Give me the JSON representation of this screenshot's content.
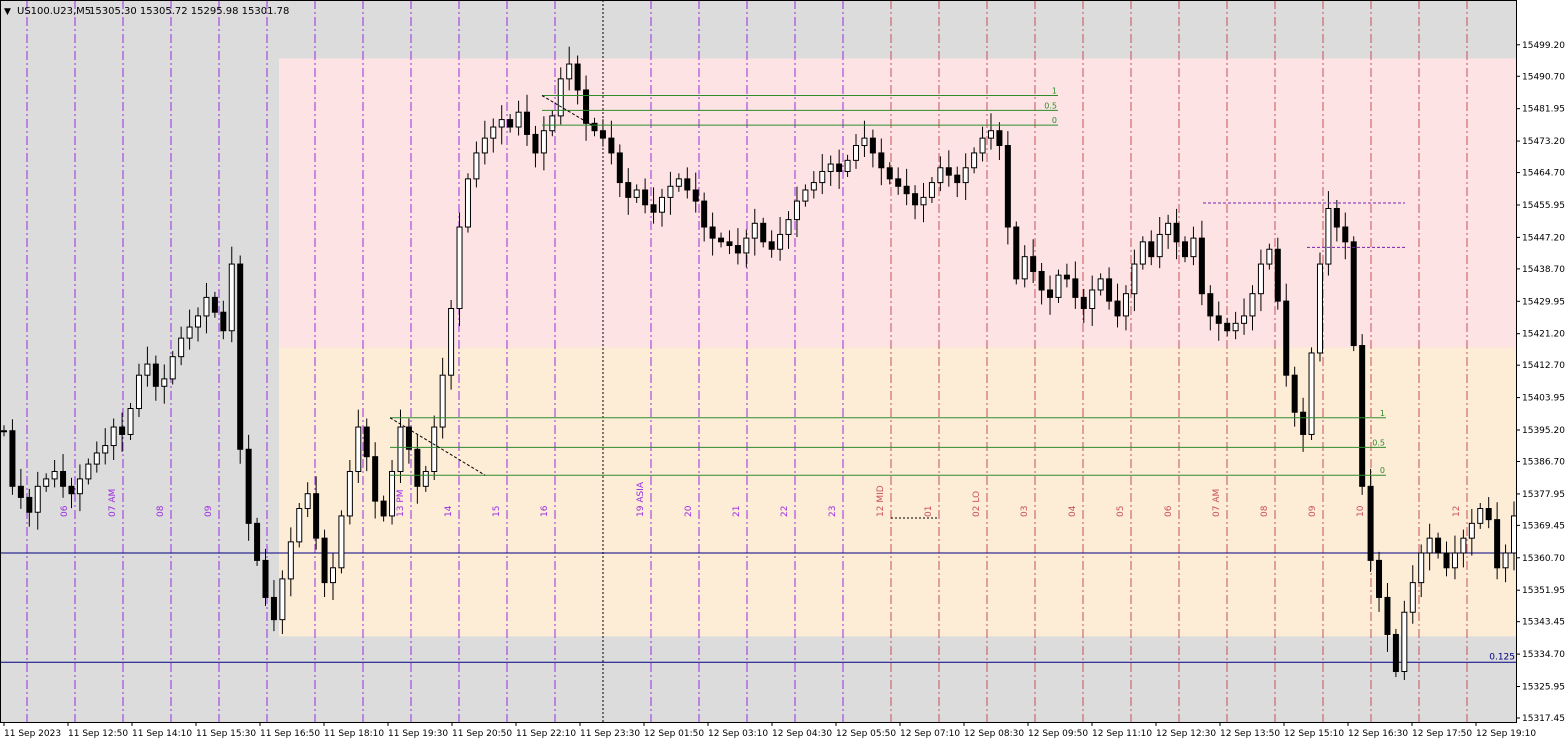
{
  "header": {
    "arrow": "▼",
    "symbol": "US100.U23,M5",
    "ohlc": "15305.30 15305.72 15295.98 15301.78"
  },
  "colors": {
    "premium_zone": "#fde3e3",
    "discount_zone": "#fdedd7",
    "outside_zone": "#dcdcdc",
    "candle": "#000000",
    "fib_line": "#2e8b2e",
    "fib_label": "#2e8b2e",
    "level_line": "#000080",
    "session_line_day1": "#9a2be0",
    "session_line_day2": "#c8505a",
    "liquidity_line": "#7a1fb0"
  },
  "chart_data": {
    "type": "candlestick",
    "title": "",
    "xlabel": "",
    "ylabel": "",
    "ylim": [
      15317.45,
      15504.0
    ],
    "y_ticks": [
      "15499.20",
      "15490.70",
      "15481.95",
      "15473.20",
      "15464.70",
      "15455.95",
      "15447.20",
      "15438.70",
      "15429.95",
      "15421.20",
      "15412.70",
      "15403.95",
      "15395.20",
      "15386.70",
      "15377.95",
      "15369.45",
      "15360.70",
      "15351.95",
      "15343.45",
      "15334.70",
      "15325.95",
      "15317.45"
    ],
    "x_ticks": [
      "11 Sep 2023",
      "11 Sep 12:50",
      "11 Sep 14:10",
      "11 Sep 15:30",
      "11 Sep 16:50",
      "11 Sep 18:10",
      "11 Sep 19:30",
      "11 Sep 20:50",
      "11 Sep 22:10",
      "11 Sep 23:30",
      "12 Sep 01:50",
      "12 Sep 03:10",
      "12 Sep 04:30",
      "12 Sep 05:50",
      "12 Sep 07:10",
      "12 Sep 08:30",
      "12 Sep 09:50",
      "12 Sep 11:10",
      "12 Sep 12:30",
      "12 Sep 13:50",
      "12 Sep 15:10",
      "12 Sep 16:30",
      "12 Sep 17:50",
      "12 Sep 19:10"
    ],
    "zones": [
      {
        "type": "premium",
        "from": 15417.5,
        "to": 15495.5
      },
      {
        "type": "discount",
        "from": 15339.5,
        "to": 15417.5
      }
    ],
    "horizontal_levels": [
      {
        "price": 15362.0,
        "label": ""
      },
      {
        "price": 15332.5,
        "label": "0.125"
      }
    ],
    "fib_sets": [
      {
        "levels": [
          {
            "label": "1",
            "price": 15485.5
          },
          {
            "label": "0.5",
            "price": 15481.5
          },
          {
            "label": "0",
            "price": 15477.5
          }
        ]
      },
      {
        "levels": [
          {
            "label": "1",
            "price": 15398.5
          },
          {
            "label": "0.5",
            "price": 15390.5
          },
          {
            "label": "0",
            "price": 15383.0
          }
        ]
      }
    ],
    "session_labels_day1": [
      "06",
      "07 AM",
      "08",
      "09",
      "13 PM",
      "14",
      "15",
      "16",
      "19 ASIA",
      "20",
      "21",
      "22",
      "23"
    ],
    "session_labels_day2": [
      "12 MID",
      "01",
      "02 LO",
      "03",
      "04",
      "05",
      "06",
      "07 AM",
      "08",
      "09",
      "10",
      "12"
    ],
    "liquidity_levels": [
      15456.5,
      15444.5
    ],
    "series": [
      {
        "close": [
          15395,
          15380,
          15377,
          15373,
          15380,
          15382,
          15384,
          15380,
          15378,
          15382,
          15386,
          15389,
          15391,
          15396,
          15394,
          15401,
          15410,
          15413,
          15407,
          15409,
          15415,
          15420,
          15423,
          15426,
          15431,
          15427,
          15422,
          15440,
          15390,
          15370,
          15360,
          15350,
          15344,
          15355,
          15365,
          15374,
          15378,
          15366,
          15354,
          15358,
          15372,
          15384,
          15396,
          15388,
          15376,
          15372,
          15384,
          15396,
          15390,
          15380,
          15384,
          15396,
          15410,
          15428,
          15450,
          15463,
          15470,
          15474,
          15477,
          15479,
          15477,
          15481,
          15475,
          15470,
          15476,
          15480,
          15490,
          15494,
          15487,
          15478,
          15476,
          15474,
          15470,
          15462,
          15458,
          15460,
          15456,
          15454,
          15458,
          15461,
          15463,
          15460,
          15457,
          15450,
          15447,
          15446,
          15445,
          15443,
          15447,
          15451,
          15446,
          15444,
          15448,
          15452,
          15457,
          15460,
          15462,
          15465,
          15467,
          15465,
          15468,
          15472,
          15474,
          15470,
          15466,
          15463,
          15461,
          15459,
          15456,
          15458,
          15462,
          15466,
          15464,
          15462,
          15466,
          15470,
          15474,
          15476,
          15472,
          15450,
          15436,
          15442,
          15438,
          15433,
          15431,
          15437,
          15436,
          15431,
          15428,
          15433,
          15436,
          15430,
          15426,
          15432,
          15440,
          15446,
          15442,
          15448,
          15451,
          15446,
          15442,
          15447,
          15432,
          15426,
          15424,
          15422,
          15424,
          15426,
          15432,
          15440,
          15444,
          15430,
          15410,
          15400,
          15394,
          15416,
          15440,
          15455,
          15450,
          15446,
          15418,
          15380,
          15360,
          15350,
          15340,
          15330,
          15346,
          15354,
          15362,
          15366,
          15362,
          15358,
          15362,
          15366,
          15370,
          15374,
          15371,
          15358,
          15362,
          15372
        ]
      }
    ]
  }
}
